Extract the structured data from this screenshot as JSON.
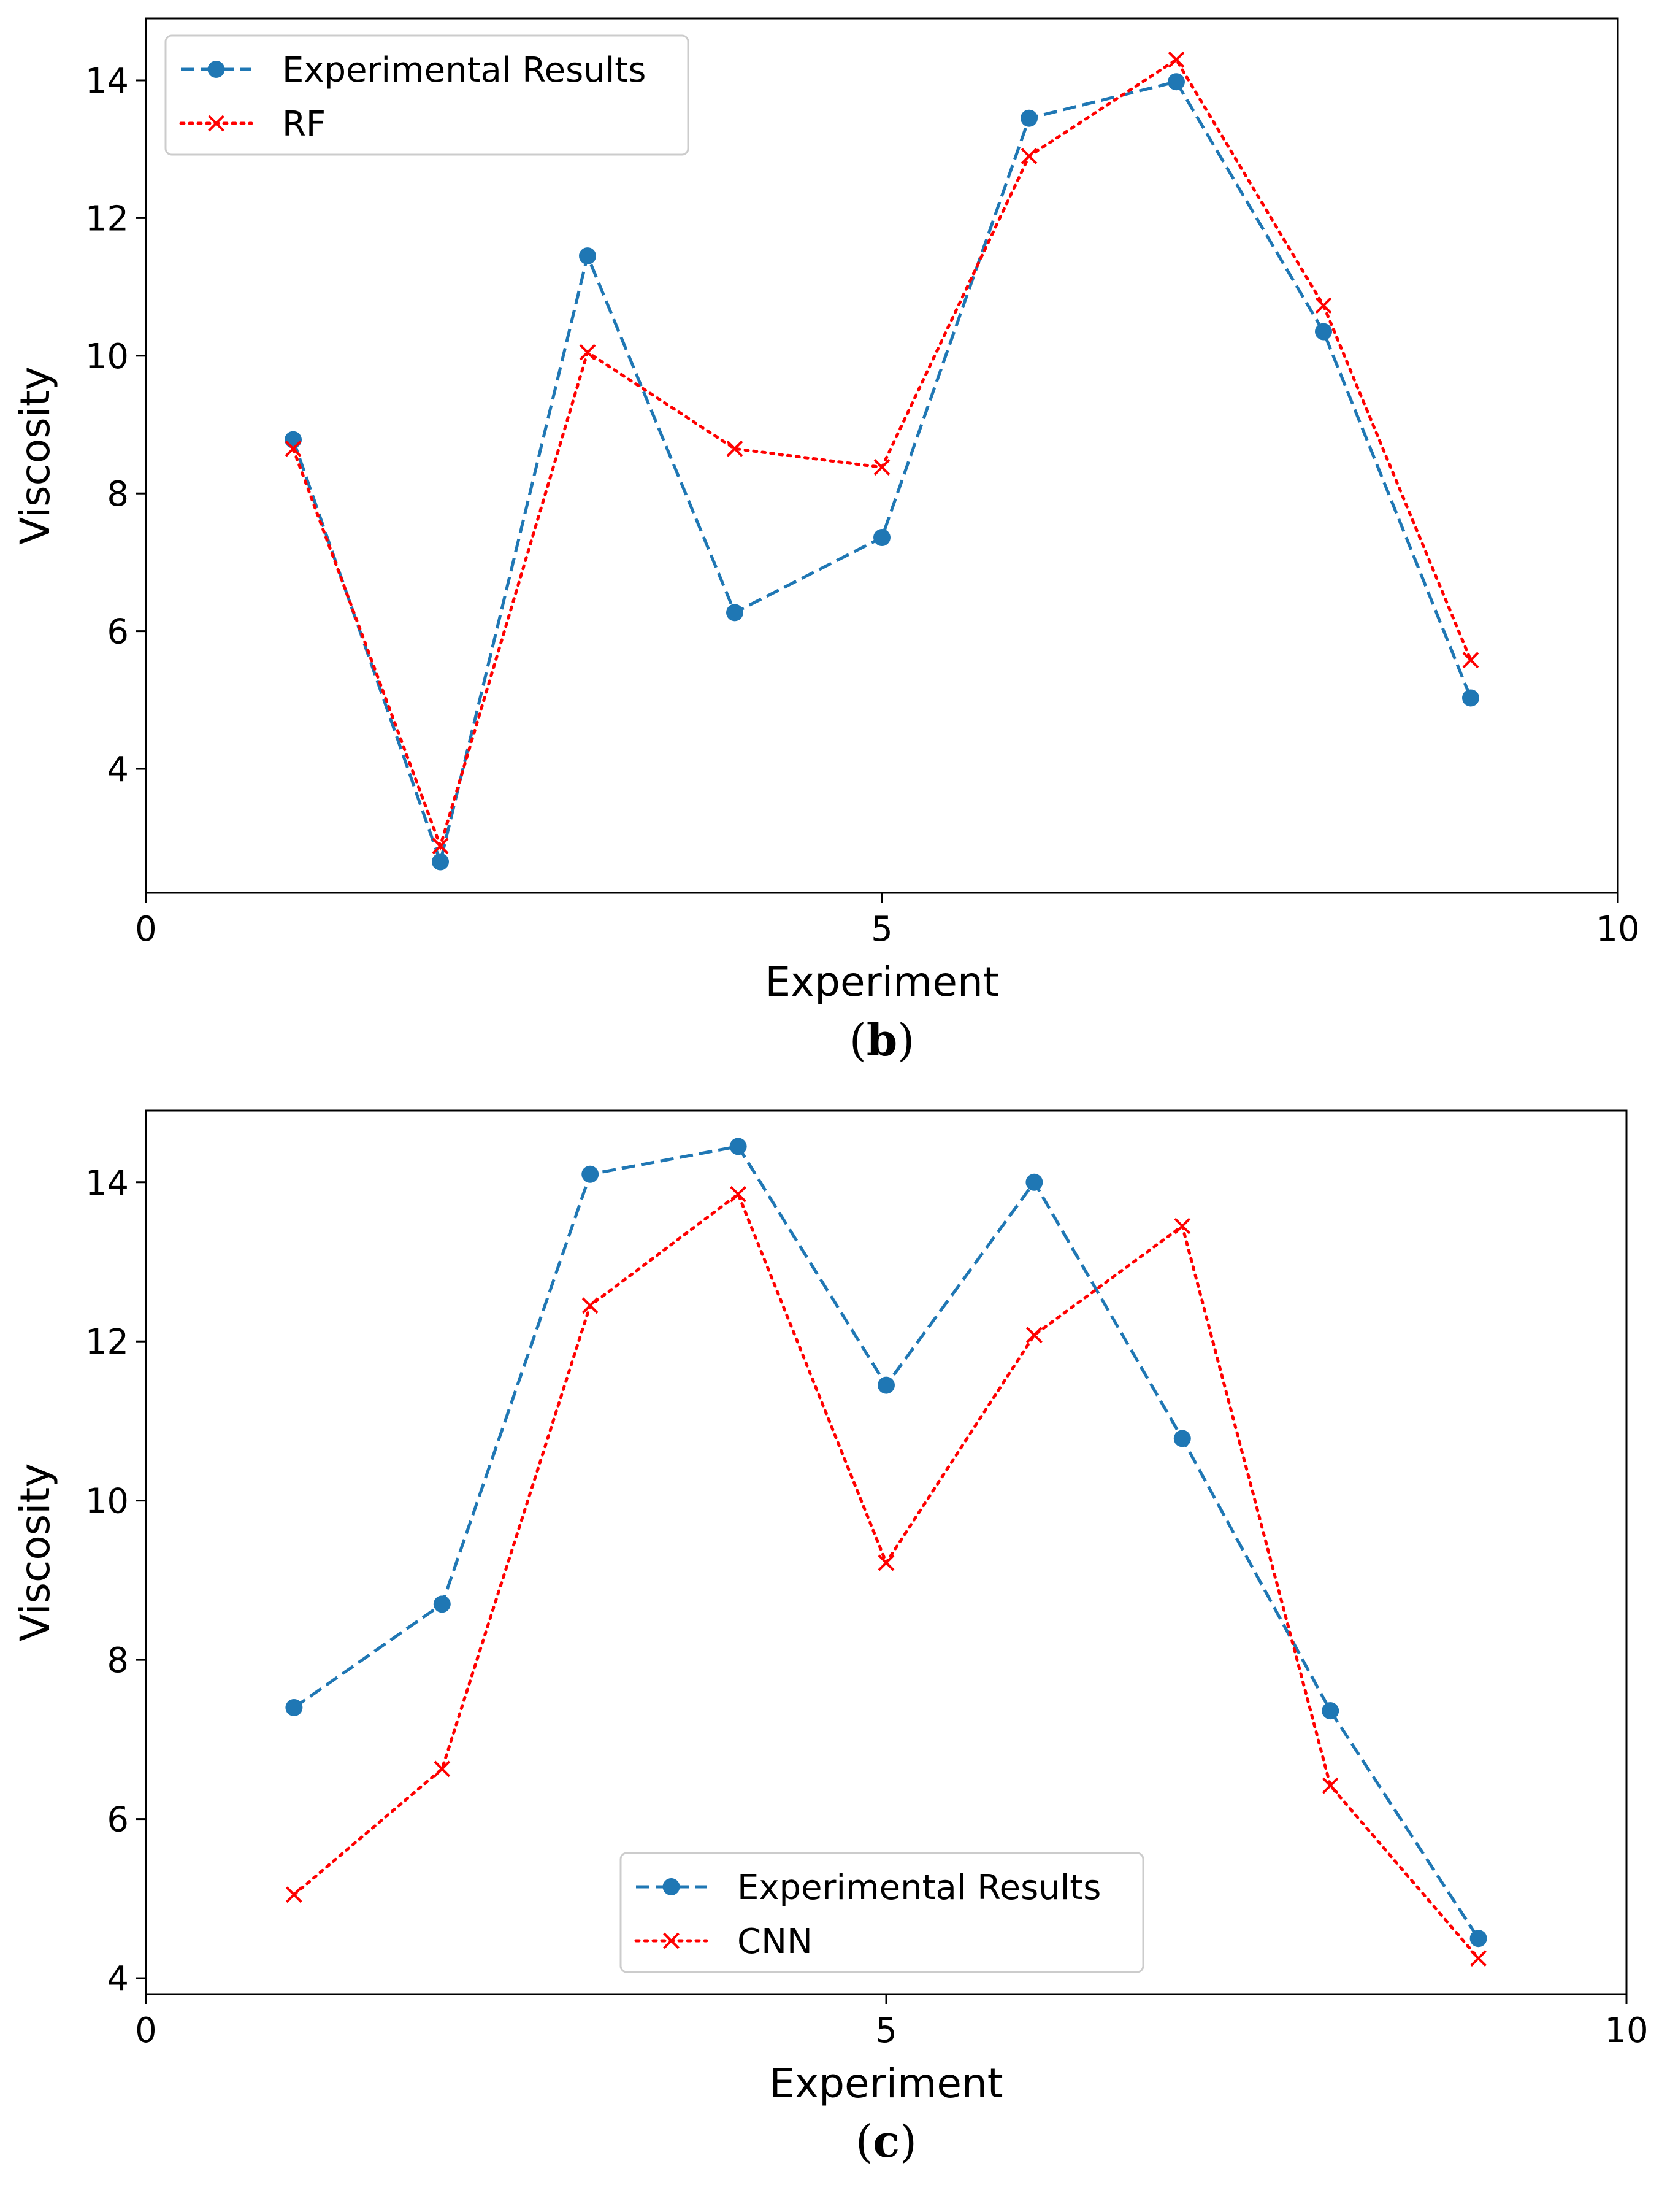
{
  "chart_data": [
    {
      "type": "line",
      "caption_letter": "b",
      "xlabel": "Experiment",
      "ylabel": "Viscosity",
      "xlim": [
        0,
        10
      ],
      "ylim": [
        2.2,
        14.9
      ],
      "x_ticks": [
        0,
        5,
        10
      ],
      "y_ticks": [
        4,
        6,
        8,
        10,
        12,
        14
      ],
      "legend_position": "top-left",
      "x": [
        1,
        2,
        3,
        4,
        5,
        6,
        7,
        8,
        9
      ],
      "series": [
        {
          "name": "Experimental Results",
          "color": "#1f77b4",
          "marker": "circle",
          "linestyle": "dashed",
          "values": [
            8.78,
            2.65,
            11.45,
            6.27,
            7.36,
            13.45,
            13.98,
            10.35,
            5.03
          ]
        },
        {
          "name": "RF",
          "color": "#ff0000",
          "marker": "x",
          "linestyle": "dotted",
          "values": [
            8.65,
            2.88,
            10.05,
            8.65,
            8.38,
            12.9,
            14.3,
            10.73,
            5.58
          ]
        }
      ]
    },
    {
      "type": "line",
      "caption_letter": "c",
      "xlabel": "Experiment",
      "ylabel": "Viscosity",
      "xlim": [
        0,
        10
      ],
      "ylim": [
        3.8,
        14.9
      ],
      "x_ticks": [
        0,
        5,
        10
      ],
      "y_ticks": [
        4,
        6,
        8,
        10,
        12,
        14
      ],
      "legend_position": "bottom-center",
      "x": [
        1,
        2,
        3,
        4,
        5,
        6,
        7,
        8,
        9
      ],
      "series": [
        {
          "name": "Experimental Results",
          "color": "#1f77b4",
          "marker": "circle",
          "linestyle": "dashed",
          "values": [
            7.4,
            8.7,
            14.1,
            14.45,
            11.45,
            14.0,
            10.78,
            7.36,
            4.5
          ]
        },
        {
          "name": "CNN",
          "color": "#ff0000",
          "marker": "x",
          "linestyle": "dotted",
          "values": [
            5.05,
            6.63,
            12.45,
            13.85,
            9.22,
            12.08,
            13.45,
            6.42,
            4.25
          ]
        }
      ]
    }
  ]
}
